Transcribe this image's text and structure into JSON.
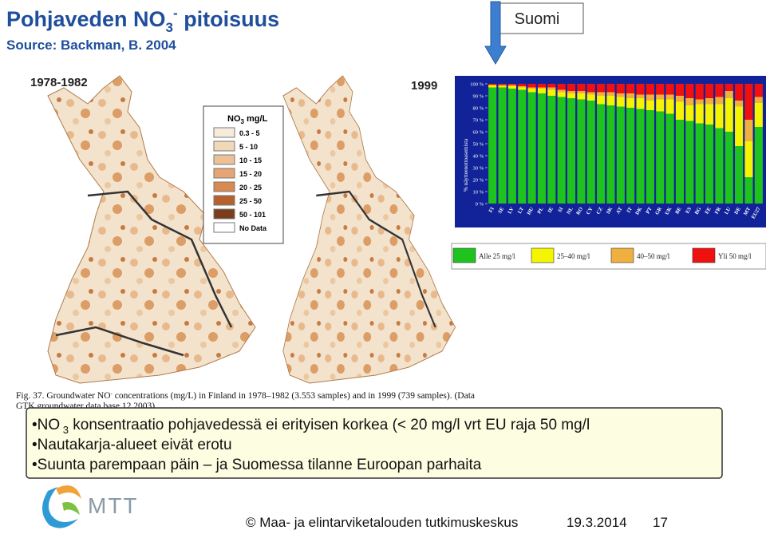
{
  "header": {
    "title": {
      "text1": "Pohjaveden  NO",
      "sub": "3",
      "sup": "-",
      "text2": " pitoisuus"
    },
    "source": "Source: Backman, B. 2004",
    "callout": "Suomi"
  },
  "maps": {
    "left_label": "1978-1982",
    "right_label": "1999",
    "legend": {
      "title": "NO",
      "title_sub": "3",
      "title_unit": " mg/L",
      "items": [
        {
          "label": "0.3 - 5",
          "color": "#f7ecdc"
        },
        {
          "label": "5 - 10",
          "color": "#f1d8b6"
        },
        {
          "label": "10 - 15",
          "color": "#ecc198"
        },
        {
          "label": "15 - 20",
          "color": "#e5a574"
        },
        {
          "label": "20 - 25",
          "color": "#d88a52"
        },
        {
          "label": "25 - 50",
          "color": "#b5602e"
        },
        {
          "label": "50 - 101",
          "color": "#7a3e1c"
        },
        {
          "label": "No Data",
          "color": "#ffffff"
        }
      ]
    },
    "caption": [
      "Fig. 37. Groundwater NO",
      "3",
      "-",
      "  concentrations  (mg/L) in Finland  in 1978–1982 (3.553 samples) and in 1999 (739 samples). (Data",
      "GTK groundwater data base 12.2003)."
    ]
  },
  "chart_data": {
    "type": "stacked-bar",
    "y_label": "% näytteenottoasemista",
    "ylim": [
      0,
      100
    ],
    "yticks": [
      {
        "value": 0,
        "label": "0 %"
      },
      {
        "value": 10,
        "label": "10 %"
      },
      {
        "value": 20,
        "label": "20 %"
      },
      {
        "value": 30,
        "label": "30 %"
      },
      {
        "value": 40,
        "label": "40 %"
      },
      {
        "value": 50,
        "label": "50 %"
      },
      {
        "value": 60,
        "label": "60 %"
      },
      {
        "value": 70,
        "label": "70 %"
      },
      {
        "value": 80,
        "label": "80 %"
      },
      {
        "value": 90,
        "label": "90 %"
      },
      {
        "value": 100,
        "label": "100 %"
      }
    ],
    "categories": [
      "FI",
      "SE",
      "LV",
      "LT",
      "HU",
      "PL",
      "IE",
      "SI",
      "NL",
      "RO",
      "CY",
      "CZ",
      "SK",
      "AT",
      "IT",
      "DK",
      "PT",
      "GR",
      "UK",
      "BE",
      "ES",
      "BG",
      "EE",
      "FR",
      "LU",
      "DE",
      "MT",
      "EU27"
    ],
    "series": [
      {
        "name": "Alle 25 mg/l",
        "color": "#1ec31e",
        "values": [
          97,
          97,
          96,
          95,
          93,
          92,
          90,
          89,
          88,
          87,
          86,
          83,
          82,
          81,
          80,
          79,
          78,
          77,
          75,
          70,
          69,
          67,
          66,
          63,
          60,
          48,
          22,
          64
        ]
      },
      {
        "name": "25–40 mg/l",
        "color": "#f5f500",
        "values": [
          2,
          1,
          2,
          2,
          3,
          4,
          5,
          4,
          4,
          5,
          5,
          7,
          8,
          8,
          8,
          9,
          8,
          10,
          12,
          15,
          13,
          16,
          17,
          20,
          28,
          33,
          30,
          20
        ]
      },
      {
        "name": "40–50 mg/l",
        "color": "#f0b040",
        "values": [
          0,
          1,
          1,
          1,
          1,
          1,
          2,
          2,
          2,
          2,
          2,
          3,
          3,
          3,
          4,
          3,
          5,
          4,
          4,
          5,
          6,
          4,
          5,
          6,
          6,
          5,
          18,
          5
        ]
      },
      {
        "name": "Yli 50 mg/l",
        "color": "#f01010",
        "values": [
          1,
          1,
          1,
          2,
          3,
          3,
          3,
          5,
          6,
          6,
          7,
          7,
          7,
          8,
          8,
          9,
          9,
          9,
          9,
          10,
          12,
          13,
          12,
          11,
          6,
          14,
          30,
          11
        ]
      }
    ]
  },
  "bullets": [
    {
      "pre": "•NO",
      "sub": " 3",
      "text": " konsentraatio pohjavedessä ei erityisen korkea (< 20 mg/l vrt EU raja 50 mg/l"
    },
    {
      "text": "•Nautakarja-alueet eivät erotu"
    },
    {
      "text": "•Suunta parempaan päin – ja Suomessa tilanne Euroopan parhaita"
    }
  ],
  "footer": {
    "logo": "MTT",
    "org": "© Maa- ja elintarviketalouden tutkimuskeskus",
    "date": "19.3.2014",
    "page": "17"
  }
}
